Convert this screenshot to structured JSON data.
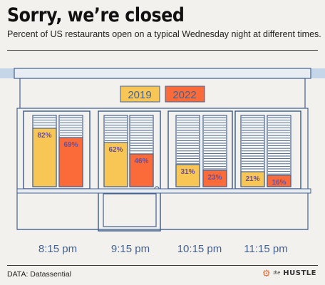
{
  "header": {
    "title": "Sorry, we’re closed",
    "subtitle": "Percent of US restaurants open on a typical Wednesday night at different times."
  },
  "footer": {
    "source": "DATA: Datassential",
    "brand_prefix": "the",
    "brand_name": "HUSTLE",
    "brand_icon": "hubspot-sprocket-icon"
  },
  "colors": {
    "2019": "#f8c654",
    "2022": "#fb6b39",
    "bar_text": "#6a4f9a",
    "outline": "#44628f",
    "sky": "#c4d6e8"
  },
  "chart_data": {
    "type": "bar",
    "title": "Sorry, we’re closed",
    "subtitle": "Percent of US restaurants open on a typical Wednesday night at different times.",
    "categories": [
      "8:15 pm",
      "9:15 pm",
      "10:15 pm",
      "11:15 pm"
    ],
    "series": [
      {
        "name": "2019",
        "values": [
          82,
          62,
          31,
          21
        ],
        "labels": [
          "82%",
          "62%",
          "31%",
          "21%"
        ]
      },
      {
        "name": "2022",
        "values": [
          69,
          46,
          23,
          16
        ],
        "labels": [
          "69%",
          "46%",
          "23%",
          "16%"
        ]
      }
    ],
    "ylim": [
      0,
      100
    ],
    "legend": "top-center",
    "grid": false
  }
}
